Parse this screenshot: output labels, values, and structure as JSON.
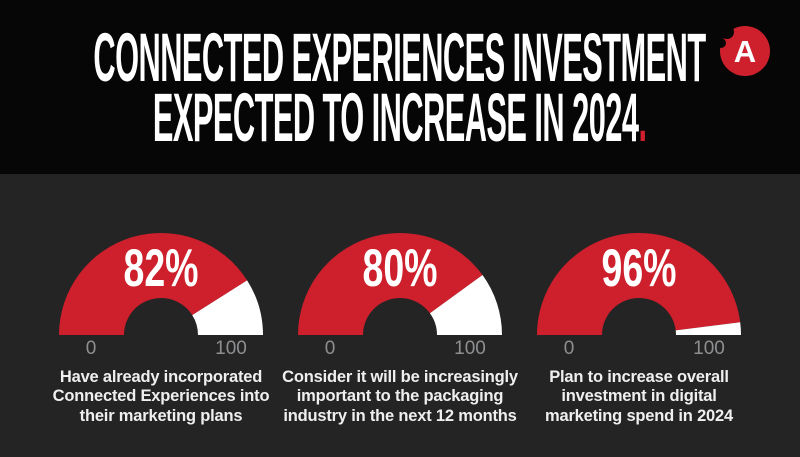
{
  "colors": {
    "red": "#cd1f2c",
    "header_bg": "#060606",
    "body_bg": "#242424",
    "gauge_remainder": "#ffffff",
    "scale_label_gray": "#8d8f91"
  },
  "header": {
    "title_line1": "CONNECTED EXPERIENCES INVESTMENT",
    "title_line2": "EXPECTED TO INCREASE IN 2024",
    "title_period": ".",
    "logo_letter": "A"
  },
  "gauges": [
    {
      "value": 82,
      "display": "82%",
      "min_label": "0",
      "max_label": "100",
      "caption": "Have already incorporated\nConnected Experiences into\ntheir marketing plans"
    },
    {
      "value": 80,
      "display": "80%",
      "min_label": "0",
      "max_label": "100",
      "caption": "Consider it will be increasingly\nimportant to the packaging\nindustry in the next 12 months"
    },
    {
      "value": 96,
      "display": "96%",
      "min_label": "0",
      "max_label": "100",
      "caption": "Plan to increase overall\ninvestment in digital\nmarketing spend in 2024"
    }
  ],
  "chart_data": [
    {
      "type": "gauge",
      "title": "Have already incorporated Connected Experiences into their marketing plans",
      "value": 82,
      "range": [
        0,
        100
      ],
      "tick_labels": [
        "0",
        "100"
      ],
      "data_label": "82%",
      "filled_color": "#cd1f2c",
      "remainder_color": "#ffffff"
    },
    {
      "type": "gauge",
      "title": "Consider it will be increasingly important to the packaging industry in the next 12 months",
      "value": 80,
      "range": [
        0,
        100
      ],
      "tick_labels": [
        "0",
        "100"
      ],
      "data_label": "80%",
      "filled_color": "#cd1f2c",
      "remainder_color": "#ffffff"
    },
    {
      "type": "gauge",
      "title": "Plan to increase overall investment in digital marketing spend in 2024",
      "value": 96,
      "range": [
        0,
        100
      ],
      "tick_labels": [
        "0",
        "100"
      ],
      "data_label": "96%",
      "filled_color": "#cd1f2c",
      "remainder_color": "#ffffff"
    }
  ]
}
